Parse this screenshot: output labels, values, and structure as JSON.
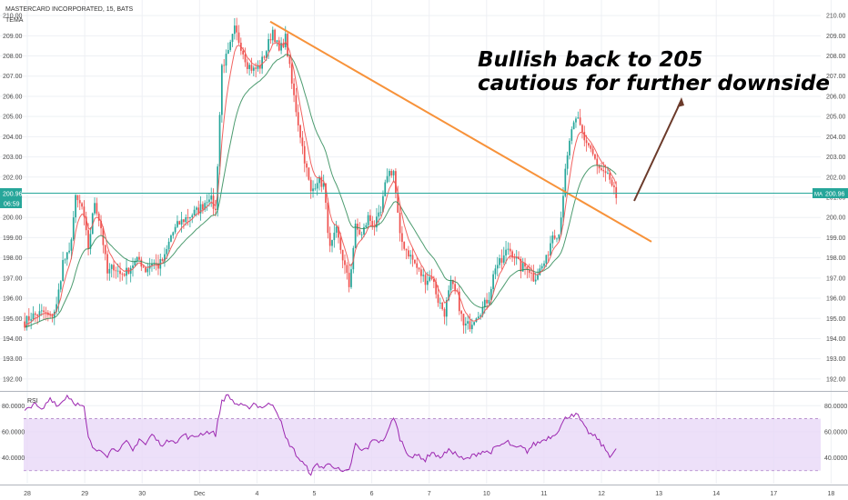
{
  "symbol_title": "MASTERCARD INCORPORATED, 15, BATS",
  "indicator_label": "TEMA",
  "rsi_label": "RSI",
  "annotation": {
    "line1": "Bullish back to 205",
    "line2": "cautious for further downside"
  },
  "price_tag": {
    "value": "200.96",
    "time": "06:59",
    "right_tag": "MA"
  },
  "colors": {
    "bull": "#26a69a",
    "bear": "#ef5350",
    "tema": "#ef5350",
    "ma": "#2e8b57",
    "trendline": "#f7923a",
    "arrow": "#6b3a2a",
    "rsi_line": "#9c27b0",
    "rsi_band": "#e9d8f7",
    "price_line": "#26a69a",
    "grid": "#eef0f4"
  },
  "chart_data": [
    {
      "type": "candlestick",
      "title": "MASTERCARD INCORPORATED, 15, BATS",
      "y_ticks": [
        "192.00",
        "193.00",
        "194.00",
        "195.00",
        "196.00",
        "197.00",
        "198.00",
        "199.00",
        "200.00",
        "201.00",
        "202.00",
        "203.00",
        "204.00",
        "205.00",
        "206.00",
        "207.00",
        "208.00",
        "209.00",
        "210.00"
      ],
      "x_tick_labels": [
        "28",
        "29",
        "30",
        "Dec",
        "4",
        "5",
        "6",
        "7",
        "10",
        "11",
        "12",
        "13",
        "14",
        "17",
        "18"
      ],
      "ylim": [
        191.5,
        210.5
      ],
      "last_price": 200.96,
      "close_anchors": [
        [
          0,
          194.8
        ],
        [
          3,
          195.1
        ],
        [
          6,
          195.2
        ],
        [
          9,
          195.3
        ],
        [
          12,
          195.0
        ],
        [
          15,
          195.6
        ],
        [
          18,
          197.8
        ],
        [
          21,
          198.2
        ],
        [
          24,
          200.9
        ],
        [
          27,
          200.5
        ],
        [
          30,
          198.5
        ],
        [
          33,
          200.8
        ],
        [
          36,
          199.5
        ],
        [
          39,
          197.2
        ],
        [
          42,
          197.6
        ],
        [
          45,
          197.2
        ],
        [
          48,
          197.3
        ],
        [
          51,
          197.7
        ],
        [
          54,
          197.9
        ],
        [
          57,
          197.4
        ],
        [
          60,
          197.8
        ],
        [
          63,
          197.6
        ],
        [
          66,
          198.0
        ],
        [
          69,
          199.1
        ],
        [
          72,
          199.6
        ],
        [
          75,
          199.9
        ],
        [
          78,
          200.1
        ],
        [
          81,
          200.3
        ],
        [
          84,
          200.6
        ],
        [
          87,
          201.1
        ],
        [
          90,
          200.3
        ],
        [
          93,
          207.5
        ],
        [
          96,
          208.1
        ],
        [
          99,
          209.3
        ],
        [
          102,
          208.5
        ],
        [
          105,
          207.6
        ],
        [
          108,
          207.3
        ],
        [
          111,
          207.5
        ],
        [
          114,
          208.3
        ],
        [
          117,
          209.3
        ],
        [
          120,
          208.2
        ],
        [
          123,
          208.9
        ],
        [
          126,
          206.6
        ],
        [
          129,
          204.7
        ],
        [
          132,
          202.9
        ],
        [
          135,
          201.2
        ],
        [
          138,
          201.9
        ],
        [
          141,
          201.6
        ],
        [
          144,
          198.4
        ],
        [
          147,
          199.3
        ],
        [
          150,
          198.0
        ],
        [
          153,
          196.6
        ],
        [
          156,
          199.5
        ],
        [
          159,
          199.1
        ],
        [
          162,
          200.0
        ],
        [
          165,
          199.6
        ],
        [
          168,
          200.2
        ],
        [
          171,
          202.2
        ],
        [
          174,
          202.3
        ],
        [
          177,
          199.0
        ],
        [
          180,
          198.4
        ],
        [
          183,
          197.9
        ],
        [
          186,
          197.3
        ],
        [
          189,
          196.9
        ],
        [
          192,
          197.1
        ],
        [
          195,
          195.9
        ],
        [
          198,
          195.3
        ],
        [
          201,
          196.7
        ],
        [
          204,
          196.1
        ],
        [
          207,
          194.6
        ],
        [
          210,
          194.7
        ],
        [
          213,
          195.2
        ],
        [
          216,
          195.5
        ],
        [
          219,
          196.1
        ],
        [
          222,
          197.6
        ],
        [
          225,
          197.8
        ],
        [
          228,
          198.5
        ],
        [
          231,
          198.1
        ],
        [
          234,
          197.5
        ],
        [
          237,
          197.6
        ],
        [
          240,
          197.0
        ],
        [
          243,
          197.4
        ],
        [
          246,
          197.9
        ],
        [
          249,
          199.2
        ],
        [
          252,
          199.2
        ],
        [
          255,
          202.2
        ],
        [
          258,
          204.4
        ],
        [
          261,
          204.8
        ],
        [
          264,
          203.9
        ],
        [
          267,
          203.4
        ],
        [
          270,
          202.5
        ],
        [
          273,
          202.1
        ],
        [
          276,
          201.9
        ],
        [
          279,
          200.96
        ]
      ],
      "series": [
        {
          "name": "TEMA"
        }
      ]
    },
    {
      "type": "line",
      "title": "RSI",
      "y_ticks": [
        "40.0000",
        "60.0000",
        "80.0000"
      ],
      "ylim": [
        20,
        90
      ],
      "bands": [
        30,
        70
      ],
      "values_anchors": [
        [
          0,
          75
        ],
        [
          4,
          82
        ],
        [
          8,
          76
        ],
        [
          12,
          86
        ],
        [
          16,
          80
        ],
        [
          20,
          88
        ],
        [
          24,
          82
        ],
        [
          28,
          78
        ],
        [
          30,
          55
        ],
        [
          33,
          45
        ],
        [
          36,
          47
        ],
        [
          39,
          42
        ],
        [
          42,
          48
        ],
        [
          45,
          46
        ],
        [
          48,
          52
        ],
        [
          51,
          45
        ],
        [
          54,
          55
        ],
        [
          57,
          50
        ],
        [
          60,
          58
        ],
        [
          63,
          52
        ],
        [
          66,
          50
        ],
        [
          69,
          55
        ],
        [
          72,
          52
        ],
        [
          75,
          58
        ],
        [
          78,
          55
        ],
        [
          81,
          57
        ],
        [
          84,
          59
        ],
        [
          87,
          60
        ],
        [
          90,
          58
        ],
        [
          93,
          84
        ],
        [
          96,
          88
        ],
        [
          99,
          82
        ],
        [
          102,
          80
        ],
        [
          105,
          78
        ],
        [
          108,
          82
        ],
        [
          111,
          79
        ],
        [
          114,
          80
        ],
        [
          117,
          82
        ],
        [
          120,
          72
        ],
        [
          123,
          55
        ],
        [
          126,
          48
        ],
        [
          129,
          40
        ],
        [
          132,
          34
        ],
        [
          135,
          28
        ],
        [
          138,
          35
        ],
        [
          141,
          32
        ],
        [
          144,
          36
        ],
        [
          147,
          32
        ],
        [
          150,
          28
        ],
        [
          153,
          30
        ],
        [
          156,
          50
        ],
        [
          159,
          45
        ],
        [
          162,
          48
        ],
        [
          165,
          55
        ],
        [
          168,
          52
        ],
        [
          171,
          58
        ],
        [
          174,
          72
        ],
        [
          177,
          55
        ],
        [
          180,
          45
        ],
        [
          183,
          40
        ],
        [
          186,
          42
        ],
        [
          189,
          38
        ],
        [
          192,
          45
        ],
        [
          195,
          40
        ],
        [
          198,
          43
        ],
        [
          201,
          46
        ],
        [
          204,
          42
        ],
        [
          207,
          38
        ],
        [
          210,
          40
        ],
        [
          213,
          43
        ],
        [
          216,
          45
        ],
        [
          219,
          44
        ],
        [
          222,
          47
        ],
        [
          225,
          50
        ],
        [
          228,
          52
        ],
        [
          231,
          47
        ],
        [
          234,
          48
        ],
        [
          237,
          45
        ],
        [
          240,
          50
        ],
        [
          243,
          52
        ],
        [
          246,
          55
        ],
        [
          249,
          57
        ],
        [
          252,
          62
        ],
        [
          255,
          70
        ],
        [
          258,
          74
        ],
        [
          261,
          72
        ],
        [
          264,
          63
        ],
        [
          267,
          58
        ],
        [
          270,
          55
        ],
        [
          273,
          48
        ],
        [
          276,
          42
        ],
        [
          279,
          46
        ]
      ]
    }
  ]
}
